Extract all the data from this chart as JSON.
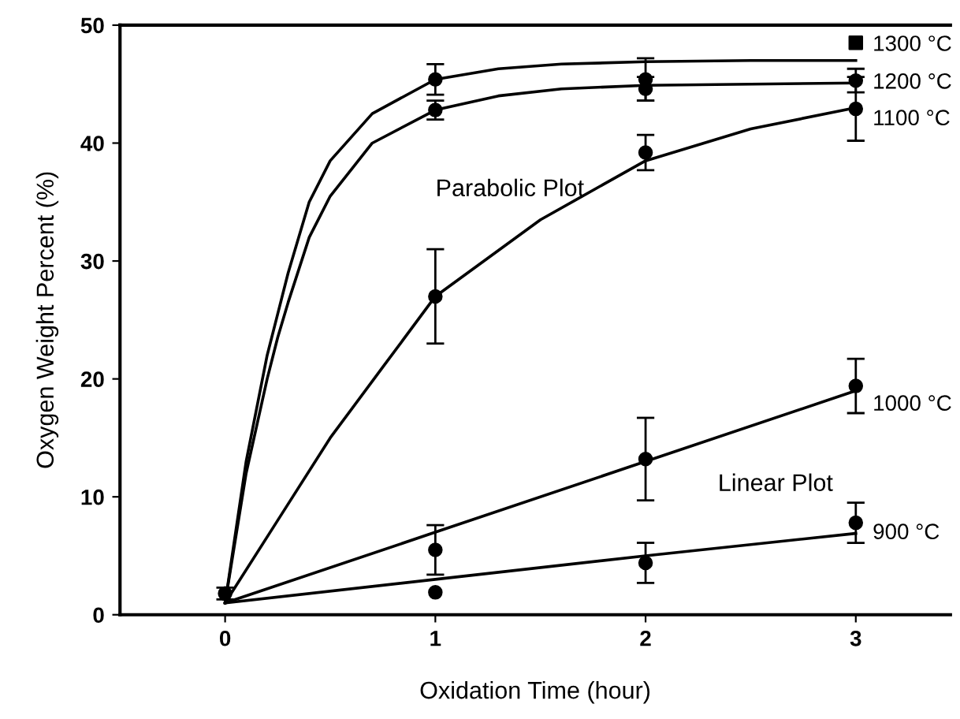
{
  "chart_data": {
    "type": "scatter",
    "xlabel": "Oxidation Time (hour)",
    "ylabel": "Oxygen Weight Percent (%)",
    "xlim": [
      -0.5,
      3.45
    ],
    "ylim": [
      0,
      50
    ],
    "xticks": [
      0,
      1,
      2,
      3
    ],
    "yticks": [
      0,
      10,
      20,
      30,
      40,
      50
    ],
    "grid": false,
    "legend": false,
    "marker": "circle",
    "annotations": [
      "Parabolic Plot",
      "Linear Plot"
    ],
    "series": [
      {
        "color": "#000000",
        "x": [
          1,
          2
        ],
        "values": [
          45.4,
          45.4
        ],
        "errors": [
          1.3,
          1.8
        ]
      },
      {
        "color": "#000000",
        "marker": "square",
        "x": [
          3
        ],
        "values": [
          48.5
        ]
      },
      {
        "color": "#000000",
        "x": [
          1,
          2,
          3
        ],
        "values": [
          42.8,
          44.6,
          45.3
        ],
        "errors": [
          0.8,
          1.0,
          1.0
        ]
      },
      {
        "color": "#000000",
        "x": [
          1,
          2,
          3
        ],
        "values": [
          27,
          39.2,
          42.9
        ],
        "errors": [
          4,
          1.5,
          2.7
        ]
      },
      {
        "color": "#000000",
        "x": [
          0,
          1,
          2,
          3
        ],
        "values": [
          1.8,
          5.5,
          13.2,
          19.4
        ],
        "errors": [
          0.5,
          2.1,
          3.5,
          2.3
        ]
      },
      {
        "color": "#000000",
        "x": [
          1,
          2,
          3
        ],
        "values": [
          1.9,
          4.4,
          7.8
        ],
        "errors": [
          null,
          1.7,
          1.7
        ]
      },
      {
        "type": "line",
        "name": "1300 °C",
        "color": "#000000",
        "marker": "none",
        "x": [
          0,
          0.1,
          0.2,
          0.25,
          0.3,
          0.4,
          0.5,
          0.7,
          1,
          1.3,
          1.6,
          2,
          2.5,
          3
        ],
        "values": [
          1,
          13,
          22,
          25.5,
          29,
          35,
          38.5,
          42.5,
          45.4,
          46.3,
          46.7,
          46.9,
          47,
          47
        ]
      },
      {
        "type": "line",
        "name": "1200 °C",
        "color": "#000000",
        "marker": "none",
        "x": [
          0,
          0.1,
          0.2,
          0.25,
          0.3,
          0.4,
          0.5,
          0.7,
          1,
          1.3,
          1.6,
          2,
          2.5,
          3
        ],
        "values": [
          1,
          12,
          20,
          23.5,
          26.5,
          32,
          35.5,
          40,
          42.8,
          44,
          44.6,
          44.9,
          45,
          45.1
        ]
      },
      {
        "type": "line",
        "name": "1100 °C",
        "color": "#000000",
        "marker": "none",
        "x": [
          0,
          0.25,
          0.5,
          0.75,
          1,
          1.5,
          2,
          2.5,
          3
        ],
        "values": [
          1,
          8,
          15,
          21,
          27,
          33.5,
          38.5,
          41.2,
          43
        ]
      },
      {
        "type": "line",
        "name": "1000 °C",
        "color": "#000000",
        "marker": "none",
        "x": [
          0,
          1,
          2,
          3
        ],
        "values": [
          1,
          7,
          13,
          19
        ]
      },
      {
        "type": "line",
        "name": "900 °C",
        "color": "#000000",
        "marker": "none",
        "x": [
          0,
          1,
          2,
          3
        ],
        "values": [
          1,
          3,
          5,
          6.9
        ]
      }
    ]
  }
}
